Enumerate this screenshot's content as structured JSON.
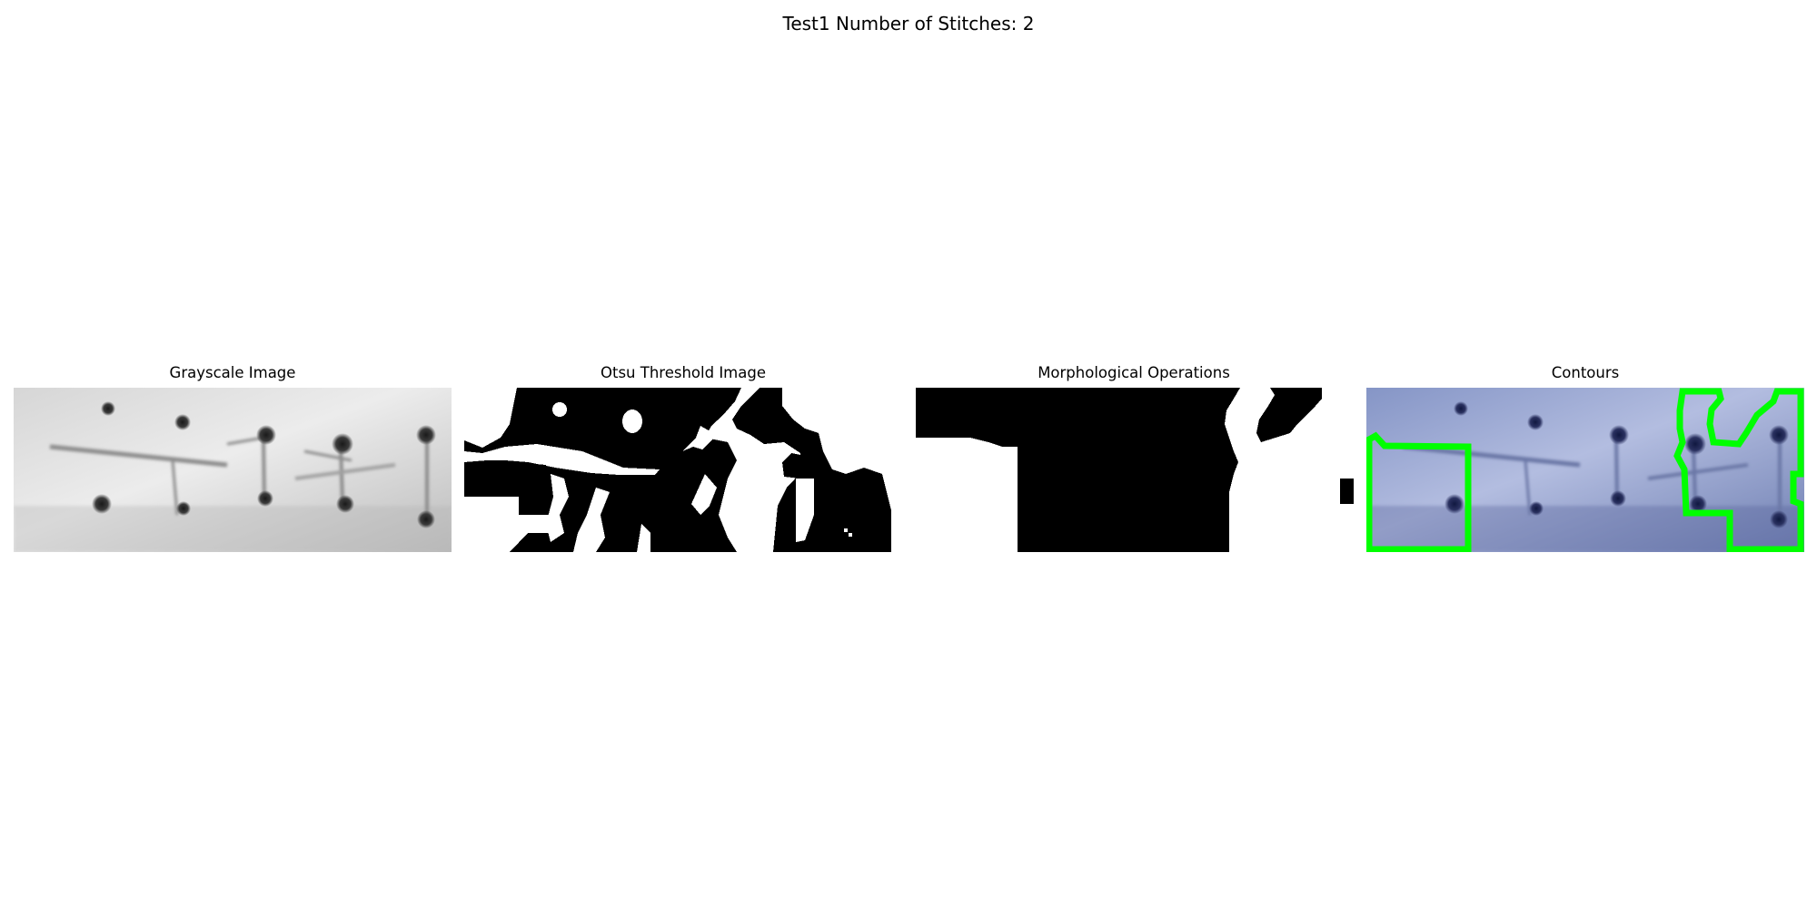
{
  "figure": {
    "suptitle": "Test1 Number of Stitches: 2"
  },
  "panels": [
    {
      "title": "Grayscale Image"
    },
    {
      "title": "Otsu Threshold Image"
    },
    {
      "title": "Morphological Operations"
    },
    {
      "title": "Contours"
    }
  ],
  "colors": {
    "contour": "#00ff00",
    "contours_background": "#8b98c6",
    "binary_foreground": "#ffffff",
    "binary_background": "#000000"
  },
  "icons": []
}
